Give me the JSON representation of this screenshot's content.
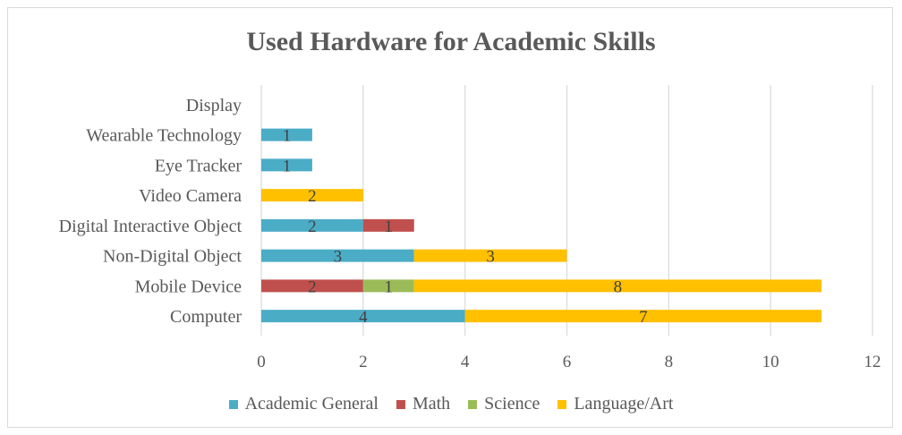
{
  "chart_data": {
    "type": "bar",
    "orientation": "horizontal",
    "stacked": true,
    "title": "Used Hardware for Academic Skills",
    "xlabel": "",
    "ylabel": "",
    "xlim": [
      0,
      12
    ],
    "x_ticks": [
      "0",
      "2",
      "4",
      "6",
      "8",
      "10",
      "12"
    ],
    "grid": "vertical",
    "legend_position": "bottom",
    "categories": [
      "Computer",
      "Mobile Device",
      "Non-Digital Object",
      "Digital Interactive Object",
      "Video Camera",
      "Eye Tracker",
      "Wearable Technology",
      "Display"
    ],
    "series": [
      {
        "name": "Academic General",
        "color": "#4BACC6",
        "values": [
          4,
          0,
          3,
          2,
          0,
          1,
          1,
          0
        ]
      },
      {
        "name": "Math",
        "color": "#C0504D",
        "values": [
          0,
          2,
          0,
          1,
          0,
          0,
          0,
          0
        ]
      },
      {
        "name": "Science",
        "color": "#9BBB59",
        "values": [
          0,
          1,
          0,
          0,
          0,
          0,
          0,
          0
        ]
      },
      {
        "name": "Language/Art",
        "color": "#FFC000",
        "values": [
          7,
          8,
          3,
          0,
          2,
          0,
          0,
          0
        ]
      }
    ]
  }
}
